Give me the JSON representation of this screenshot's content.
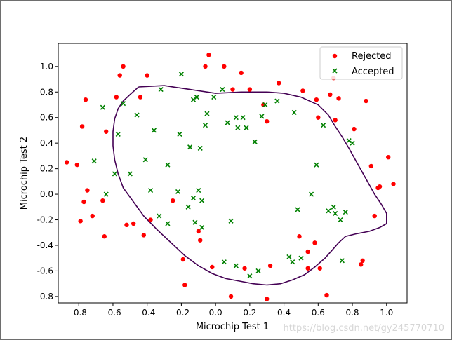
{
  "chart_data": {
    "type": "scatter",
    "title": "",
    "xlabel": "Microchip Test 1",
    "ylabel": "Microchip Test 2",
    "xlim": [
      -0.92,
      1.12
    ],
    "ylim": [
      -0.85,
      1.18
    ],
    "xticks": [
      -0.8,
      -0.6,
      -0.4,
      -0.2,
      0.0,
      0.2,
      0.4,
      0.6,
      0.8,
      1.0
    ],
    "xtick_labels": [
      "-0.8",
      "-0.6",
      "-0.4",
      "-0.2",
      "0.0",
      "0.2",
      "0.4",
      "0.6",
      "0.8",
      "1.0"
    ],
    "yticks": [
      -0.8,
      -0.6,
      -0.4,
      -0.2,
      0.0,
      0.2,
      0.4,
      0.6,
      0.8,
      1.0
    ],
    "ytick_labels": [
      "-0.8",
      "-0.6",
      "-0.4",
      "-0.2",
      "0.0",
      "0.2",
      "0.4",
      "0.6",
      "0.8",
      "1.0"
    ],
    "grid": false,
    "legend_position": "top-right",
    "series": [
      {
        "name": "Rejected",
        "marker": "circle",
        "color": "#ff0000",
        "points": [
          [
            -0.87,
            0.25
          ],
          [
            -0.81,
            0.23
          ],
          [
            -0.79,
            -0.21
          ],
          [
            -0.78,
            0.53
          ],
          [
            -0.77,
            -0.06
          ],
          [
            -0.76,
            0.74
          ],
          [
            -0.75,
            0.03
          ],
          [
            -0.72,
            -0.17
          ],
          [
            -0.65,
            -0.33
          ],
          [
            -0.66,
            -0.05
          ],
          [
            -0.64,
            0.49
          ],
          [
            -0.58,
            0.76
          ],
          [
            -0.56,
            0.93
          ],
          [
            -0.54,
            1.0
          ],
          [
            -0.52,
            -0.24
          ],
          [
            -0.48,
            -0.23
          ],
          [
            -0.44,
            0.76
          ],
          [
            -0.42,
            -0.32
          ],
          [
            -0.4,
            0.93
          ],
          [
            -0.38,
            -0.2
          ],
          [
            -0.25,
            -0.05
          ],
          [
            -0.19,
            -0.51
          ],
          [
            -0.18,
            -0.71
          ],
          [
            -0.1,
            -0.29
          ],
          [
            -0.09,
            -0.36
          ],
          [
            -0.06,
            1.0
          ],
          [
            -0.04,
            1.09
          ],
          [
            -0.02,
            -0.57
          ],
          [
            0.05,
            1.0
          ],
          [
            0.09,
            -0.8
          ],
          [
            0.1,
            0.82
          ],
          [
            0.15,
            0.95
          ],
          [
            0.17,
            -0.58
          ],
          [
            0.2,
            0.82
          ],
          [
            0.28,
            0.7
          ],
          [
            0.3,
            0.57
          ],
          [
            0.3,
            -0.82
          ],
          [
            0.32,
            -0.56
          ],
          [
            0.37,
            0.87
          ],
          [
            0.49,
            -0.33
          ],
          [
            0.51,
            0.81
          ],
          [
            0.54,
            -0.58
          ],
          [
            0.6,
            0.6
          ],
          [
            0.61,
            -0.58
          ],
          [
            0.65,
            -0.79
          ],
          [
            0.67,
            0.78
          ],
          [
            0.69,
            0.91
          ],
          [
            0.7,
            0.58
          ],
          [
            0.72,
            0.75
          ],
          [
            0.81,
            0.51
          ],
          [
            0.85,
            -0.55
          ],
          [
            0.86,
            -0.52
          ],
          [
            0.88,
            0.73
          ],
          [
            0.91,
            0.22
          ],
          [
            0.93,
            -0.17
          ],
          [
            0.95,
            0.05
          ],
          [
            0.96,
            0.06
          ],
          [
            1.04,
            0.08
          ],
          [
            1.01,
            0.29
          ],
          [
            0.58,
            -0.38
          ],
          [
            0.54,
            -0.45
          ],
          [
            0.59,
            0.74
          ]
        ]
      },
      {
        "name": "Accepted",
        "marker": "x",
        "color": "#008000",
        "points": [
          [
            -0.71,
            0.26
          ],
          [
            -0.66,
            0.68
          ],
          [
            -0.64,
            0.0
          ],
          [
            -0.59,
            0.16
          ],
          [
            -0.57,
            0.47
          ],
          [
            -0.54,
            0.71
          ],
          [
            -0.5,
            0.16
          ],
          [
            -0.46,
            0.62
          ],
          [
            -0.41,
            0.27
          ],
          [
            -0.38,
            0.03
          ],
          [
            -0.36,
            0.5
          ],
          [
            -0.33,
            -0.17
          ],
          [
            -0.32,
            0.82
          ],
          [
            -0.28,
            0.23
          ],
          [
            -0.22,
            0.02
          ],
          [
            -0.21,
            0.47
          ],
          [
            -0.2,
            0.94
          ],
          [
            -0.15,
            0.37
          ],
          [
            -0.13,
            0.74
          ],
          [
            -0.11,
            0.76
          ],
          [
            -0.1,
            0.03
          ],
          [
            -0.09,
            0.36
          ],
          [
            -0.06,
            0.54
          ],
          [
            -0.01,
            0.76
          ],
          [
            0.04,
            0.82
          ],
          [
            0.07,
            0.56
          ],
          [
            -0.16,
            -0.1
          ],
          [
            -0.12,
            -0.22
          ],
          [
            -0.08,
            -0.26
          ],
          [
            0.09,
            -0.21
          ],
          [
            0.13,
            0.52
          ],
          [
            0.16,
            0.6
          ],
          [
            0.18,
            0.52
          ],
          [
            0.23,
            0.41
          ],
          [
            0.27,
            0.61
          ],
          [
            0.29,
            0.7
          ],
          [
            0.36,
            0.73
          ],
          [
            0.43,
            -0.49
          ],
          [
            0.45,
            -0.53
          ],
          [
            0.46,
            0.64
          ],
          [
            0.48,
            -0.12
          ],
          [
            0.5,
            -0.5
          ],
          [
            0.56,
            0.0
          ],
          [
            0.59,
            0.23
          ],
          [
            0.63,
            0.54
          ],
          [
            0.66,
            -0.13
          ],
          [
            0.69,
            -0.1
          ],
          [
            0.7,
            -0.15
          ],
          [
            0.73,
            -0.2
          ],
          [
            0.76,
            -0.14
          ],
          [
            0.78,
            0.42
          ],
          [
            0.8,
            0.4
          ],
          [
            0.74,
            -0.52
          ],
          [
            0.25,
            -0.6
          ],
          [
            0.2,
            -0.64
          ],
          [
            0.12,
            -0.56
          ],
          [
            0.05,
            -0.53
          ],
          [
            -0.08,
            -0.05
          ],
          [
            -0.13,
            -0.03
          ],
          [
            -0.28,
            -0.23
          ],
          [
            -0.05,
            0.63
          ],
          [
            0.12,
            0.6
          ]
        ]
      }
    ],
    "decision_boundary": {
      "color": "#440154",
      "x": [
        -0.45,
        -0.3,
        -0.15,
        0.0,
        0.15,
        0.3,
        0.4,
        0.5,
        0.6,
        0.66,
        0.7,
        0.74,
        0.78,
        0.83,
        0.88,
        0.93,
        0.97,
        1.0,
        1.0,
        0.96,
        0.9,
        0.82,
        0.76,
        0.72,
        0.68,
        0.64,
        0.58,
        0.52,
        0.45,
        0.38,
        0.3,
        0.22,
        0.14,
        0.06,
        -0.02,
        -0.1,
        -0.18,
        -0.26,
        -0.34,
        -0.42,
        -0.48,
        -0.54,
        -0.57,
        -0.59,
        -0.6,
        -0.6,
        -0.59,
        -0.57,
        -0.54,
        -0.5,
        -0.45
      ],
      "y": [
        0.84,
        0.85,
        0.82,
        0.79,
        0.8,
        0.8,
        0.79,
        0.76,
        0.7,
        0.62,
        0.53,
        0.45,
        0.36,
        0.24,
        0.12,
        0.0,
        -0.08,
        -0.15,
        -0.23,
        -0.26,
        -0.29,
        -0.31,
        -0.33,
        -0.38,
        -0.44,
        -0.5,
        -0.57,
        -0.63,
        -0.67,
        -0.7,
        -0.71,
        -0.7,
        -0.68,
        -0.66,
        -0.62,
        -0.56,
        -0.48,
        -0.38,
        -0.28,
        -0.17,
        -0.06,
        0.05,
        0.16,
        0.27,
        0.38,
        0.49,
        0.59,
        0.67,
        0.73,
        0.78,
        0.84
      ]
    }
  },
  "watermark": "https://blog.csdn.net/gy245770710"
}
